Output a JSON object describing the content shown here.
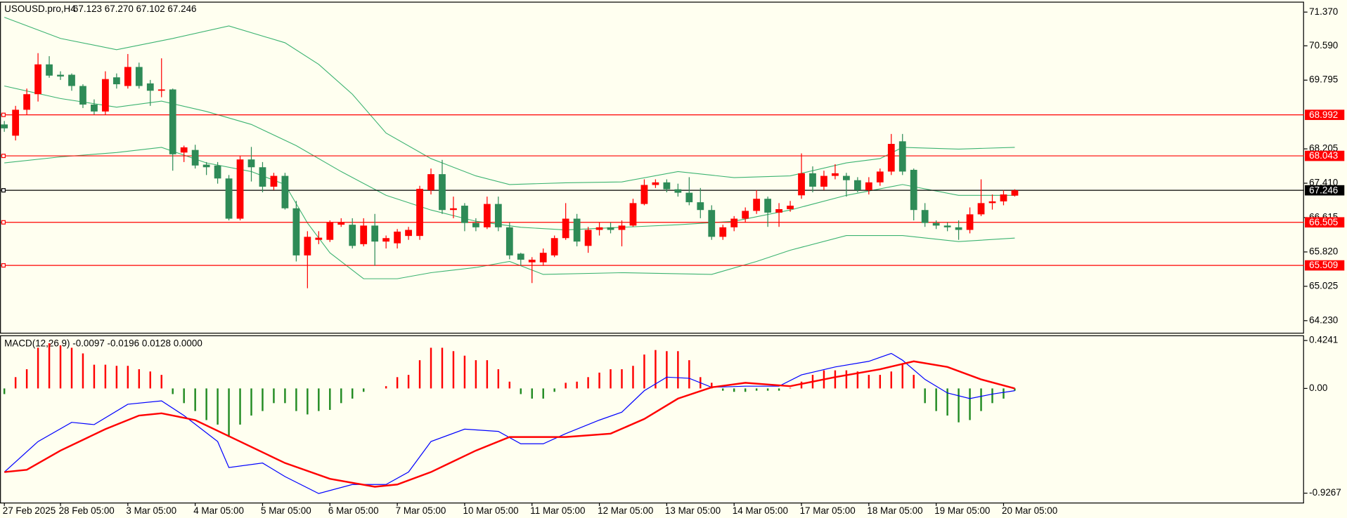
{
  "chart_data": [
    {
      "type": "candlestick",
      "title": "USOUSD.pro,H4",
      "ohlc_text": "67.123 67.270 67.102 67.246",
      "categories": [
        "27 Feb 2025",
        null,
        null,
        null,
        null,
        "28 Feb 05:00",
        null,
        null,
        null,
        null,
        null,
        "3 Mar 05:00",
        null,
        null,
        null,
        null,
        null,
        "4 Mar 05:00",
        null,
        null,
        null,
        null,
        null,
        "5 Mar 05:00",
        null,
        null,
        null,
        null,
        null,
        "6 Mar 05:00",
        null,
        null,
        null,
        null,
        null,
        "7 Mar 05:00",
        null,
        null,
        null,
        null,
        null,
        "10 Mar 05:00",
        null,
        null,
        null,
        null,
        null,
        "11 Mar 05:00",
        null,
        null,
        null,
        null,
        null,
        "12 Mar 05:00",
        null,
        null,
        null,
        null,
        null,
        "13 Mar 05:00",
        null,
        null,
        null,
        null,
        null,
        "14 Mar 05:00",
        null,
        null,
        null,
        null,
        null,
        "17 Mar 05:00",
        null,
        null,
        null,
        null,
        null,
        "18 Mar 05:00",
        null,
        null,
        null,
        null,
        null,
        "19 Mar 05:00",
        null,
        null,
        null,
        null,
        null,
        "20 Mar 05:00",
        null
      ],
      "open": [
        68.77,
        68.51,
        69.11,
        69.47,
        70.16,
        69.92,
        69.92,
        69.66,
        69.23,
        69.07,
        69.86,
        69.66,
        70.1,
        69.72,
        69.55,
        69.58,
        68.12,
        68.18,
        67.84,
        67.82,
        67.52,
        66.59,
        67.96,
        67.78,
        67.33,
        67.58,
        66.83,
        65.74,
        66.1,
        66.1,
        66.45,
        66.45,
        66.0,
        66.43,
        66.06,
        66.02,
        66.19,
        66.19,
        67.25,
        67.62,
        66.79,
        66.89,
        66.49,
        66.39,
        66.93,
        66.39,
        65.78,
        65.58,
        65.58,
        65.74,
        66.14,
        66.59,
        65.96,
        66.33,
        66.39,
        66.33,
        66.43,
        66.93,
        67.37,
        67.43,
        67.27,
        67.19,
        66.97,
        66.79,
        66.17,
        66.39,
        66.59,
        66.77,
        67.05,
        66.73,
        66.81,
        67.13,
        67.64,
        67.33,
        67.58,
        67.58,
        67.48,
        67.25,
        67.43,
        67.68,
        68.38,
        67.72,
        66.79,
        66.49,
        66.43,
        66.39,
        66.33,
        66.69,
        66.95,
        66.99,
        67.123
      ],
      "high": [
        68.85,
        69.2,
        69.6,
        70.42,
        70.35,
        70.0,
        69.95,
        69.7,
        69.35,
        70.0,
        69.95,
        70.4,
        70.2,
        69.8,
        70.3,
        69.6,
        68.28,
        68.3,
        67.9,
        67.9,
        67.6,
        68.05,
        68.25,
        67.9,
        67.65,
        67.65,
        67.0,
        66.3,
        66.3,
        66.55,
        66.6,
        66.6,
        66.6,
        66.7,
        66.2,
        66.35,
        66.4,
        67.35,
        67.75,
        67.95,
        67.1,
        66.95,
        66.6,
        67.1,
        67.1,
        66.5,
        65.8,
        65.7,
        65.9,
        66.2,
        66.95,
        66.7,
        66.4,
        66.5,
        66.5,
        66.55,
        67.05,
        67.5,
        67.5,
        67.5,
        67.4,
        67.55,
        67.3,
        66.9,
        66.45,
        66.65,
        66.85,
        67.25,
        67.1,
        66.95,
        67.0,
        68.1,
        67.8,
        67.7,
        67.85,
        67.65,
        67.55,
        67.55,
        67.75,
        68.55,
        68.55,
        67.75,
        66.95,
        66.55,
        66.5,
        66.55,
        66.85,
        67.5,
        67.15,
        67.25,
        67.27
      ],
      "low": [
        68.6,
        68.4,
        69.0,
        69.3,
        69.85,
        69.8,
        69.55,
        69.15,
        69.0,
        69.0,
        69.6,
        69.6,
        69.6,
        69.2,
        69.4,
        67.7,
        67.9,
        67.75,
        67.6,
        67.4,
        66.55,
        66.55,
        67.45,
        67.2,
        67.25,
        66.8,
        65.6,
        64.98,
        66.0,
        66.05,
        66.4,
        65.9,
        65.95,
        65.5,
        65.9,
        65.9,
        66.1,
        66.1,
        67.15,
        66.7,
        66.6,
        66.3,
        66.3,
        66.35,
        66.3,
        65.65,
        65.5,
        65.1,
        65.5,
        65.7,
        66.1,
        65.95,
        65.8,
        66.2,
        66.25,
        65.95,
        66.4,
        66.9,
        67.3,
        67.2,
        67.1,
        66.9,
        66.6,
        66.1,
        66.1,
        66.3,
        66.5,
        66.7,
        66.4,
        66.4,
        66.75,
        67.05,
        67.2,
        67.25,
        67.5,
        67.1,
        67.2,
        67.15,
        67.35,
        67.6,
        67.6,
        66.55,
        66.4,
        66.35,
        66.3,
        66.1,
        66.25,
        66.65,
        66.8,
        66.9,
        67.102
      ],
      "close": [
        68.68,
        69.11,
        69.47,
        70.16,
        69.9,
        69.88,
        69.66,
        69.23,
        69.07,
        69.82,
        69.7,
        70.1,
        69.66,
        69.55,
        69.58,
        68.08,
        68.24,
        67.82,
        67.78,
        67.52,
        66.59,
        67.96,
        67.78,
        67.33,
        67.58,
        66.83,
        65.74,
        66.17,
        66.15,
        66.51,
        66.51,
        65.96,
        66.43,
        66.06,
        66.14,
        66.29,
        66.33,
        67.28,
        67.62,
        66.79,
        66.83,
        66.49,
        66.39,
        66.93,
        66.39,
        65.74,
        65.64,
        65.64,
        65.8,
        66.14,
        66.59,
        66.06,
        66.33,
        66.39,
        66.33,
        66.43,
        66.95,
        67.37,
        67.43,
        67.27,
        67.19,
        66.97,
        66.79,
        66.17,
        66.39,
        66.59,
        66.77,
        67.05,
        66.73,
        66.81,
        66.89,
        67.64,
        67.33,
        67.58,
        67.64,
        67.48,
        67.25,
        67.43,
        67.68,
        68.32,
        67.68,
        66.79,
        66.49,
        66.43,
        66.39,
        66.33,
        66.69,
        66.95,
        66.99,
        67.15,
        67.246
      ],
      "up_color": "#ff0000",
      "down_color": "#2e8b57",
      "series": [
        {
          "color": "#3cb371",
          "x": [
            0,
            5,
            10,
            15,
            20,
            25,
            28,
            31,
            34,
            38,
            42,
            45,
            50,
            55,
            60,
            65,
            70,
            75,
            78,
            80,
            85,
            90
          ],
          "values": [
            71.25,
            70.76,
            70.5,
            70.76,
            71.05,
            70.66,
            70.16,
            69.47,
            68.57,
            67.98,
            67.58,
            67.38,
            67.42,
            67.44,
            67.68,
            67.54,
            67.58,
            67.88,
            67.98,
            68.24,
            68.2,
            68.24
          ]
        },
        {
          "color": "#3cb371",
          "x": [
            0,
            5,
            10,
            14,
            18,
            22,
            26,
            30,
            34,
            38,
            42,
            46,
            50,
            55,
            60,
            65,
            70,
            75,
            80,
            85,
            90
          ],
          "values": [
            69.66,
            69.37,
            69.17,
            69.31,
            69.07,
            68.77,
            68.28,
            67.68,
            67.13,
            66.79,
            66.53,
            66.39,
            66.33,
            66.39,
            66.45,
            66.53,
            66.79,
            67.13,
            67.38,
            67.13,
            67.13
          ]
        },
        {
          "color": "#3cb371",
          "x": [
            0,
            5,
            10,
            14,
            18,
            22,
            25,
            27,
            29,
            32,
            35,
            38,
            42,
            45,
            48,
            55,
            63,
            67,
            70,
            75,
            80,
            85,
            90
          ],
          "values": [
            67.88,
            68.02,
            68.12,
            68.24,
            67.88,
            67.68,
            67.38,
            66.49,
            65.8,
            65.2,
            65.2,
            65.34,
            65.46,
            65.6,
            65.3,
            65.34,
            65.3,
            65.6,
            65.86,
            66.2,
            66.2,
            66.06,
            66.14
          ]
        }
      ],
      "hlines": [
        {
          "value": 68.992,
          "color": "#ff0000"
        },
        {
          "value": 68.043,
          "color": "#ff0000"
        },
        {
          "value": 67.246,
          "color": "#000000"
        },
        {
          "value": 66.505,
          "color": "#ff0000"
        },
        {
          "value": 65.509,
          "color": "#ff0000"
        }
      ],
      "ylim": [
        63.95,
        71.61
      ],
      "yticks": [
        {
          "value": 71.37,
          "label": "71.370"
        },
        {
          "value": 70.59,
          "label": "70.590"
        },
        {
          "value": 69.795,
          "label": "69.795"
        },
        {
          "value": 68.205,
          "label": "68.205"
        },
        {
          "value": 67.41,
          "label": "67.410"
        },
        {
          "value": 66.615,
          "label": "66.615"
        },
        {
          "value": 65.82,
          "label": "65.820"
        },
        {
          "value": 65.025,
          "label": "65.025"
        },
        {
          "value": 64.23,
          "label": "64.230"
        }
      ]
    },
    {
      "type": "macd",
      "title": "MACD(12,26,9) -0.0097 -0.0196 0.0128 0.0000",
      "values": [
        -0.05,
        0.1,
        0.17,
        0.36,
        0.4,
        0.38,
        0.36,
        0.31,
        0.21,
        0.21,
        0.2,
        0.2,
        0.17,
        0.15,
        0.12,
        -0.05,
        -0.13,
        -0.2,
        -0.28,
        -0.32,
        -0.43,
        -0.32,
        -0.24,
        -0.2,
        -0.13,
        -0.13,
        -0.2,
        -0.23,
        -0.2,
        -0.19,
        -0.13,
        -0.09,
        -0.03,
        0.0,
        0.02,
        0.1,
        0.12,
        0.25,
        0.36,
        0.36,
        0.33,
        0.29,
        0.25,
        0.25,
        0.17,
        0.06,
        -0.05,
        -0.09,
        -0.09,
        -0.03,
        0.05,
        0.06,
        0.1,
        0.14,
        0.17,
        0.17,
        0.2,
        0.3,
        0.34,
        0.33,
        0.33,
        0.25,
        0.1,
        0.05,
        -0.02,
        -0.03,
        -0.03,
        -0.02,
        -0.02,
        -0.02,
        0.005,
        0.06,
        0.12,
        0.16,
        0.16,
        0.16,
        0.15,
        0.12,
        0.12,
        0.15,
        0.21,
        0.12,
        -0.13,
        -0.2,
        -0.24,
        -0.3,
        -0.28,
        -0.2,
        -0.13,
        -0.09,
        -0.02
      ],
      "up_color": "#ff0000",
      "down_color": "#228b22",
      "series": [
        {
          "color": "#0000ff",
          "x": [
            0,
            3,
            6,
            8,
            11,
            14,
            16,
            19,
            20,
            23,
            25,
            28,
            31,
            34,
            36,
            38,
            41,
            44,
            46,
            48,
            50,
            53,
            55,
            57,
            59,
            61,
            63,
            66,
            69,
            71,
            74,
            77,
            79,
            80,
            82,
            84,
            86,
            88,
            90
          ],
          "values": [
            -0.74,
            -0.47,
            -0.3,
            -0.32,
            -0.14,
            -0.11,
            -0.24,
            -0.47,
            -0.7,
            -0.66,
            -0.78,
            -0.93,
            -0.85,
            -0.85,
            -0.74,
            -0.47,
            -0.36,
            -0.38,
            -0.49,
            -0.49,
            -0.4,
            -0.28,
            -0.21,
            -0.02,
            0.1,
            0.09,
            0.01,
            0.02,
            0.02,
            0.12,
            0.19,
            0.24,
            0.31,
            0.25,
            0.08,
            -0.04,
            -0.09,
            -0.05,
            -0.02
          ]
        },
        {
          "color": "#ff0000",
          "x": [
            0,
            2,
            5,
            9,
            12,
            14,
            17,
            21,
            25,
            29,
            33,
            35,
            38,
            42,
            45,
            50,
            54,
            57,
            60,
            63,
            66,
            70,
            74,
            78,
            81,
            84,
            87,
            90
          ],
          "values": [
            -0.74,
            -0.72,
            -0.55,
            -0.36,
            -0.24,
            -0.22,
            -0.28,
            -0.47,
            -0.66,
            -0.8,
            -0.87,
            -0.85,
            -0.74,
            -0.55,
            -0.43,
            -0.43,
            -0.4,
            -0.27,
            -0.09,
            0.01,
            0.05,
            0.02,
            0.1,
            0.17,
            0.24,
            0.19,
            0.08,
            0.0
          ]
        }
      ],
      "ylim": [
        -1.01,
        0.47
      ],
      "yticks": [
        0.4241,
        {
          "value": 0,
          "label": "0.00"
        },
        -0.9267
      ]
    }
  ]
}
